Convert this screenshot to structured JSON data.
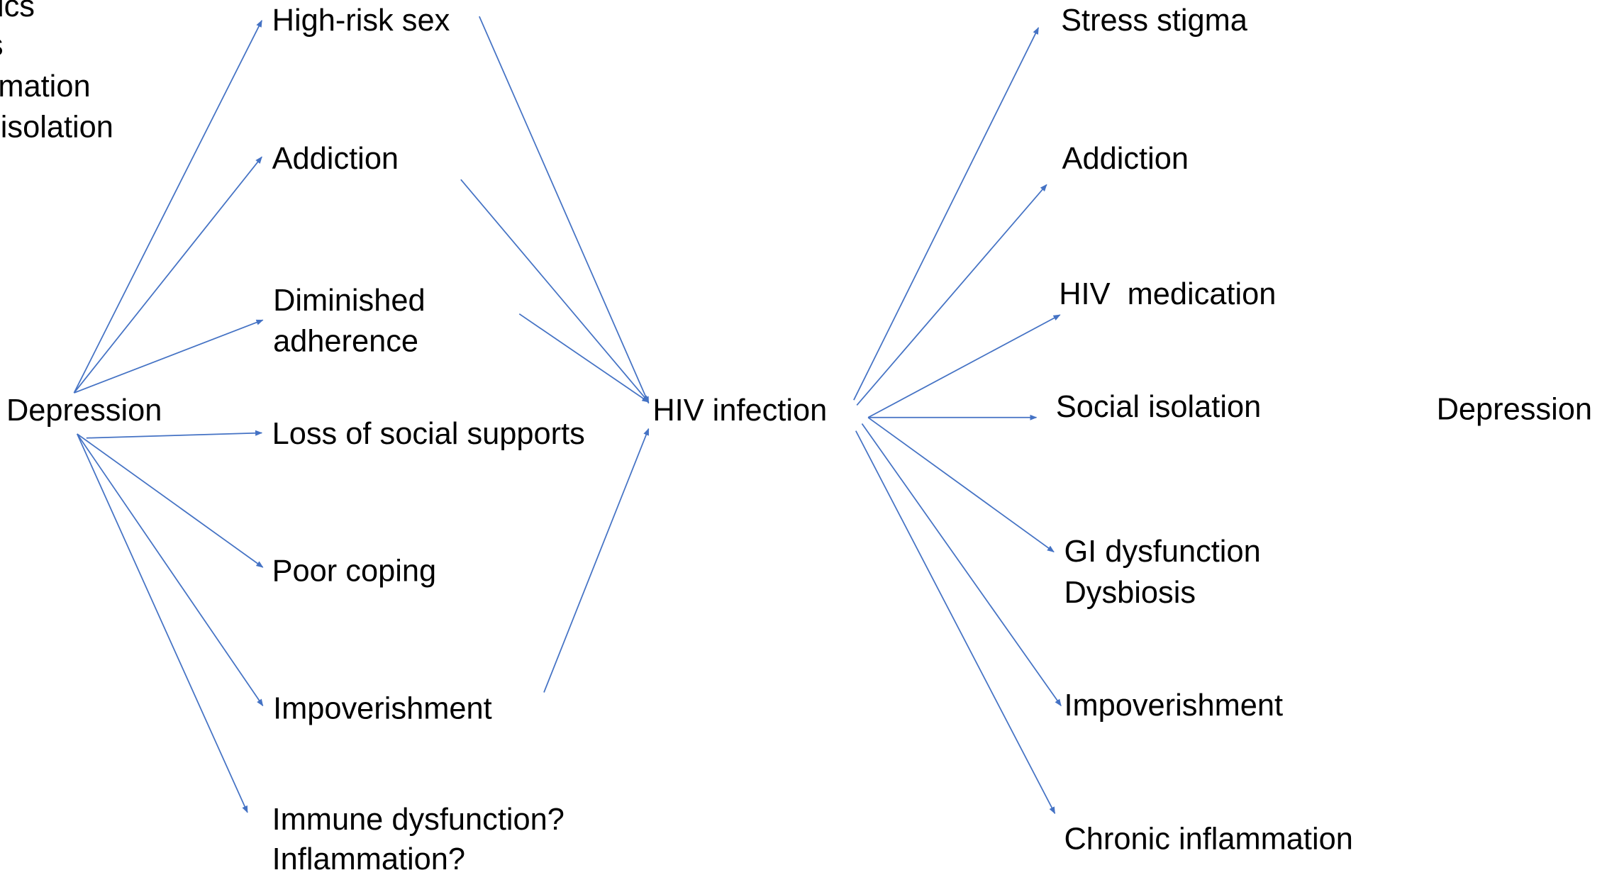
{
  "cropped_left": [
    "ics",
    "s",
    "mation",
    " isolation"
  ],
  "source": "Depression",
  "causes": [
    {
      "lines": [
        "High-risk sex"
      ]
    },
    {
      "lines": [
        "Addiction"
      ]
    },
    {
      "lines": [
        "Diminished",
        "adherence"
      ]
    },
    {
      "lines": [
        "Loss of social supports"
      ]
    },
    {
      "lines": [
        "Poor coping"
      ]
    },
    {
      "lines": [
        "Impoverishment"
      ]
    },
    {
      "lines": [
        "Immune dysfunction?",
        "Inflammation?"
      ]
    }
  ],
  "hub": "HIV infection",
  "effects": [
    {
      "lines": [
        "Stress stigma"
      ]
    },
    {
      "lines": [
        "Addiction"
      ]
    },
    {
      "lines": [
        "HIV  medication"
      ]
    },
    {
      "lines": [
        "Social isolation"
      ]
    },
    {
      "lines": [
        "GI dysfunction",
        "Dysbiosis"
      ]
    },
    {
      "lines": [
        "Impoverishment"
      ]
    },
    {
      "lines": [
        "Chronic inflammation"
      ]
    }
  ],
  "outcome": "Depression"
}
